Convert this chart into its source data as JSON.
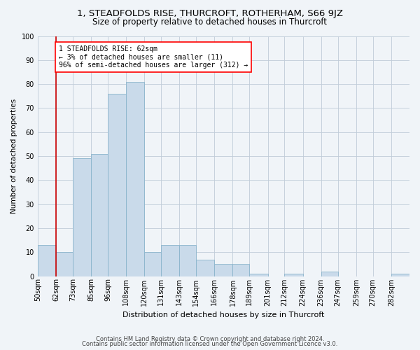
{
  "title1": "1, STEADFOLDS RISE, THURCROFT, ROTHERHAM, S66 9JZ",
  "title2": "Size of property relative to detached houses in Thurcroft",
  "xlabel": "Distribution of detached houses by size in Thurcroft",
  "ylabel": "Number of detached properties",
  "footnote1": "Contains HM Land Registry data © Crown copyright and database right 2024.",
  "footnote2": "Contains public sector information licensed under the Open Government Licence v3.0.",
  "annotation_line1": "1 STEADFOLDS RISE: 62sqm",
  "annotation_line2": "← 3% of detached houses are smaller (11)",
  "annotation_line3": "96% of semi-detached houses are larger (312) →",
  "bar_color": "#c9daea",
  "bar_edge_color": "#8ab4cc",
  "highlight_color": "#cc0000",
  "categories": [
    "50sqm",
    "62sqm",
    "73sqm",
    "85sqm",
    "96sqm",
    "108sqm",
    "120sqm",
    "131sqm",
    "143sqm",
    "154sqm",
    "166sqm",
    "178sqm",
    "189sqm",
    "201sqm",
    "212sqm",
    "224sqm",
    "236sqm",
    "247sqm",
    "259sqm",
    "270sqm",
    "282sqm"
  ],
  "values": [
    13,
    10,
    49,
    51,
    76,
    81,
    10,
    13,
    13,
    7,
    5,
    5,
    1,
    0,
    1,
    0,
    2,
    0,
    0,
    0,
    1
  ],
  "bin_edges": [
    50,
    62,
    73,
    85,
    96,
    108,
    120,
    131,
    143,
    154,
    166,
    178,
    189,
    201,
    212,
    224,
    236,
    247,
    259,
    270,
    282,
    294
  ],
  "ylim": [
    0,
    100
  ],
  "yticks": [
    0,
    10,
    20,
    30,
    40,
    50,
    60,
    70,
    80,
    90,
    100
  ],
  "background_color": "#f0f4f8",
  "grid_color": "#c0ccd8",
  "title1_fontsize": 9.5,
  "title2_fontsize": 8.5,
  "xlabel_fontsize": 8,
  "ylabel_fontsize": 7.5,
  "footnote_fontsize": 6,
  "tick_fontsize": 7,
  "annot_fontsize": 7
}
